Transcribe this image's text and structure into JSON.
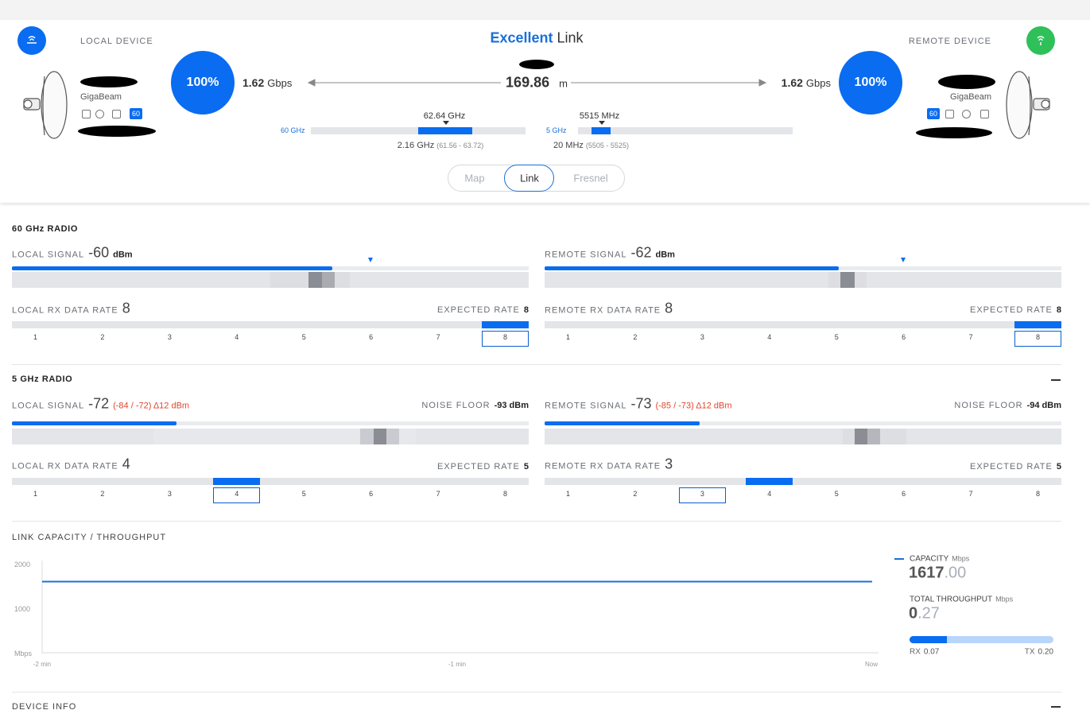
{
  "header": {
    "local_title": "LOCAL DEVICE",
    "remote_title": "REMOTE DEVICE",
    "quality": "Excellent",
    "quality_suffix": "Link",
    "distance": "169.86",
    "distance_unit": "m",
    "local": {
      "score": "100%",
      "capacity": "1.62",
      "capacity_unit": "Gbps",
      "model": "GigaBeam",
      "band_badge": "60"
    },
    "remote": {
      "score": "100%",
      "capacity": "1.62",
      "capacity_unit": "Gbps",
      "model": "GigaBeam",
      "band_badge": "60"
    },
    "band_60": {
      "label": "60 GHz",
      "center": "62.64 GHz",
      "width": "2.16 GHz",
      "range": "(61.56 - 63.72)"
    },
    "band_5": {
      "label": "5 GHz",
      "center": "5515 MHz",
      "width": "20 MHz",
      "range": "(5505 - 5525)"
    },
    "tabs": [
      "Map",
      "Link",
      "Fresnel"
    ]
  },
  "rate_scale": [
    1,
    2,
    3,
    4,
    5,
    6,
    7,
    8
  ],
  "radio_60": {
    "title": "60 GHz RADIO",
    "local": {
      "signal_label": "LOCAL SIGNAL",
      "signal": "-60",
      "signal_unit": "dBm",
      "rate_label": "LOCAL RX DATA RATE",
      "rate": 8,
      "expected_label": "EXPECTED RATE",
      "expected": 8
    },
    "remote": {
      "signal_label": "REMOTE SIGNAL",
      "signal": "-62",
      "signal_unit": "dBm",
      "rate_label": "REMOTE RX DATA RATE",
      "rate": 8,
      "expected_label": "EXPECTED RATE",
      "expected": 8
    }
  },
  "radio_5": {
    "title": "5 GHz RADIO",
    "local": {
      "signal_label": "LOCAL SIGNAL",
      "signal": "-72",
      "signal_range": "(-84 / -72) Δ12 dBm",
      "noise_label": "NOISE FLOOR",
      "noise": "-93 dBm",
      "rate_label": "LOCAL RX DATA RATE",
      "rate": 4,
      "expected_label": "EXPECTED RATE",
      "expected": 5
    },
    "remote": {
      "signal_label": "REMOTE SIGNAL",
      "signal": "-73",
      "signal_range": "(-85 / -73) Δ12 dBm",
      "noise_label": "NOISE FLOOR",
      "noise": "-94 dBm",
      "rate_label": "REMOTE RX DATA RATE",
      "rate": 3,
      "expected_label": "EXPECTED RATE",
      "expected": 5
    }
  },
  "throughput": {
    "title": "LINK CAPACITY / THROUGHPUT",
    "chart_data": {
      "type": "line",
      "categories": [
        "-2 min",
        "-1 min",
        "Now"
      ],
      "series": [
        {
          "name": "CAPACITY",
          "color": "#1a6fd9",
          "values": [
            1617,
            1617,
            1617
          ]
        }
      ],
      "ylim": [
        0,
        2000
      ],
      "yticks": [
        {
          "value": 0,
          "label": "Mbps"
        },
        1000,
        2000
      ],
      "grid": false
    },
    "capacity_unit": "Mbps",
    "capacity_int": "1617",
    "capacity_frac": ".00",
    "throughput_label": "TOTAL THROUGHPUT",
    "throughput_unit": "Mbps",
    "throughput_int": "0",
    "throughput_frac": ".27",
    "rx_label": "RX",
    "rx": "0.07",
    "tx_label": "TX",
    "tx": "0.20"
  },
  "device_info": {
    "title": "DEVICE INFO"
  }
}
